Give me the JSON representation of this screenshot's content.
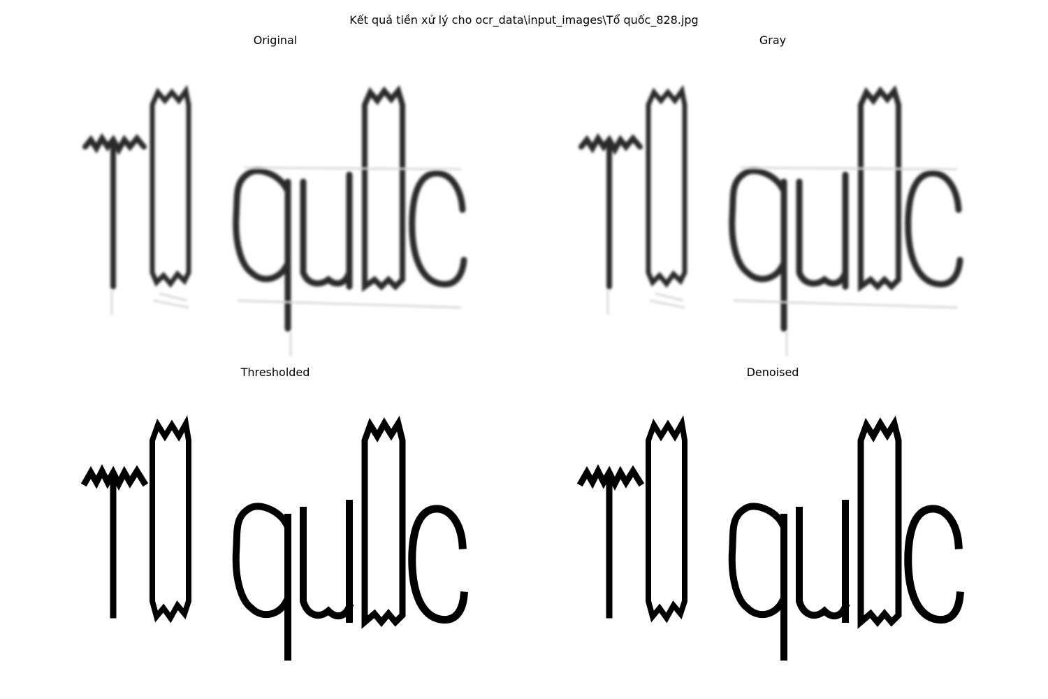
{
  "figure": {
    "suptitle": "Kết quả tiền xử lý cho ocr_data\\input_images\\Tổ quốc_828.jpg"
  },
  "panels": [
    {
      "title": "Original",
      "style": "blurry-gray",
      "ink": "#2b2b2b"
    },
    {
      "title": "Gray",
      "style": "blurry-gray",
      "ink": "#2a2a2a"
    },
    {
      "title": "Thresholded",
      "style": "binary",
      "ink": "#000000"
    },
    {
      "title": "Denoised",
      "style": "binary",
      "ink": "#000000"
    }
  ]
}
